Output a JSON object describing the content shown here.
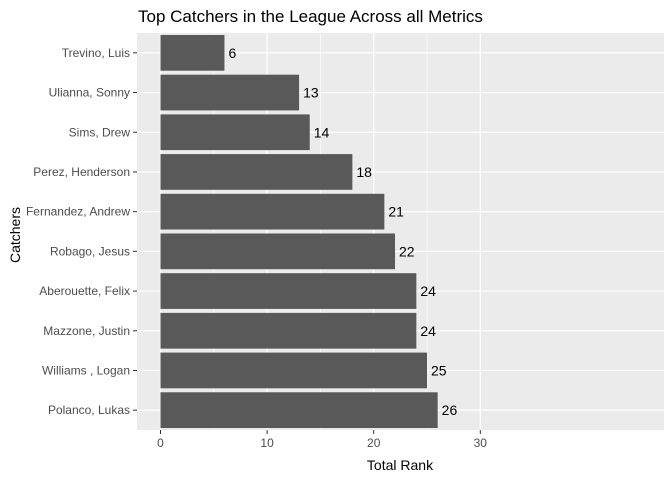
{
  "chart_data": {
    "type": "bar",
    "orientation": "horizontal",
    "title": "Top Catchers in the League Across all Metrics",
    "xlabel": "Total Rank",
    "ylabel": "Catchers",
    "categories": [
      "Trevino, Luis",
      "Ulianna, Sonny",
      "Sims, Drew",
      "Perez, Henderson",
      "Fernandez, Andrew",
      "Robago, Jesus",
      "Aberouette, Felix",
      "Mazzone, Justin",
      "Williams , Logan",
      "Polanco, Lukas"
    ],
    "values": [
      6,
      13,
      14,
      18,
      21,
      22,
      24,
      24,
      25,
      26
    ],
    "xlim": [
      0,
      30
    ],
    "xticks": [
      0,
      10,
      20,
      30
    ],
    "grid": true,
    "legend": "none",
    "colors": {
      "bar": "#595959",
      "panel": "#ebebeb",
      "grid": "#ffffff",
      "tick_text": "#4d4d4d",
      "text": "#000000"
    }
  }
}
